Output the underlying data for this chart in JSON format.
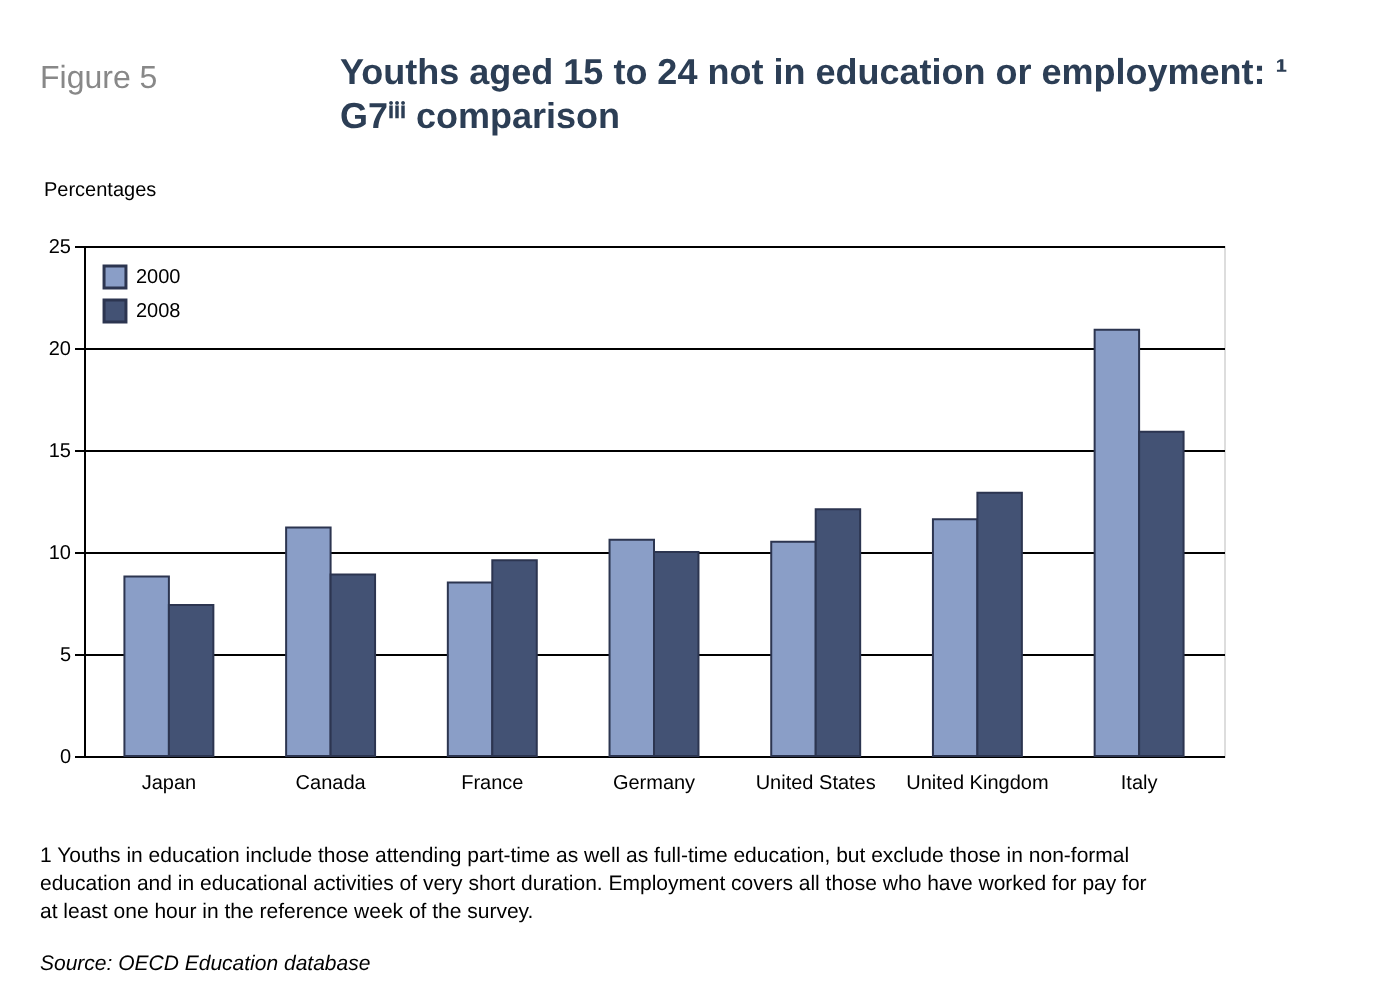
{
  "chart_data": {
    "type": "bar",
    "title": "Youths aged 15 to 24 not in education or employment: ¹\nG7ⁱⁱⁱ comparison",
    "ylabel": "Percentages",
    "categories": [
      "Japan",
      "Canada",
      "France",
      "Germany",
      "United States",
      "United Kingdom",
      "Italy"
    ],
    "series": [
      {
        "name": "2000",
        "color": "#8a9ec7",
        "values": [
          8.8,
          11.2,
          8.5,
          10.6,
          10.5,
          11.6,
          20.9
        ]
      },
      {
        "name": "2008",
        "color": "#435274",
        "values": [
          7.4,
          8.9,
          9.6,
          10.0,
          12.1,
          12.9,
          15.9
        ]
      }
    ],
    "ylim": [
      0,
      25
    ],
    "yticks": [
      0,
      5,
      10,
      15,
      20,
      25
    ],
    "grid": "y",
    "legend": "top left",
    "annotations": [
      "Figure 5",
      "1 Youths in education include those attending part-time as well as full-time education, but exclude those in non-formal\neducation and in educational activities of very short duration. Employment covers all those who have worked for pay for\nat least one hour in the reference week of the survey.",
      "Source: OECD Education database"
    ]
  }
}
